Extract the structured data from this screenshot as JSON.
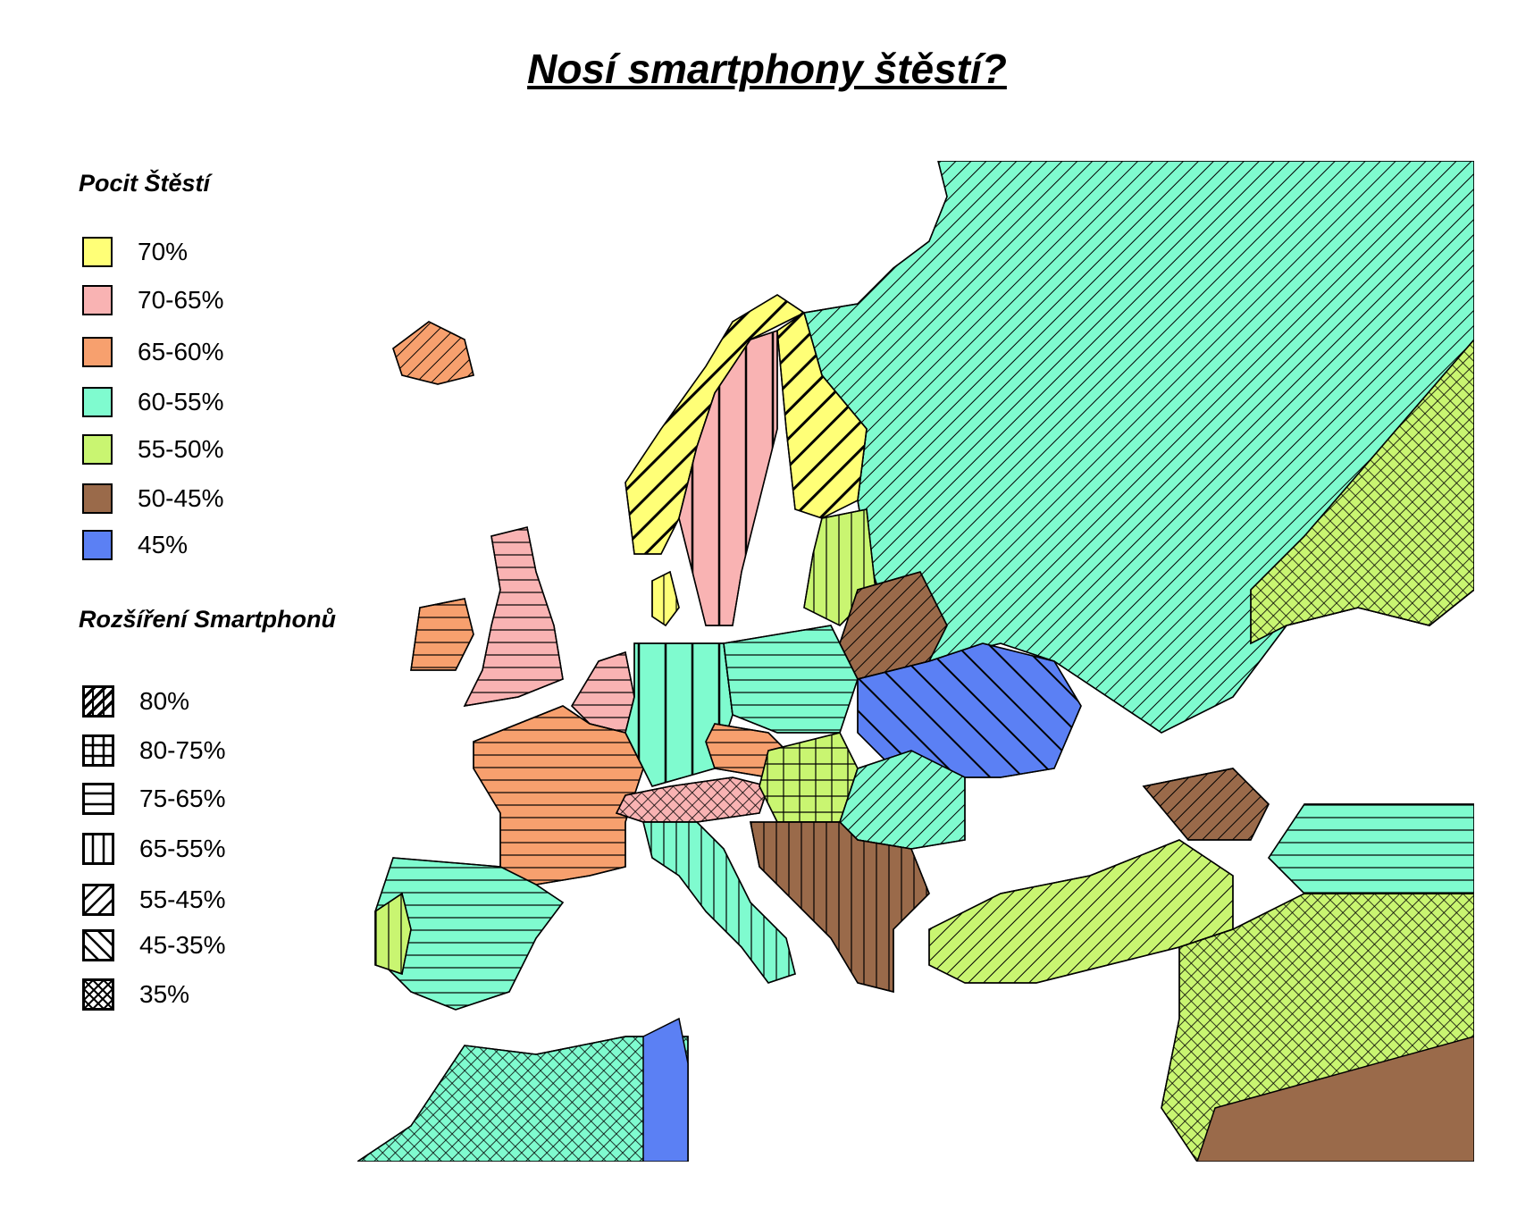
{
  "title": "Nosí smartphony štěstí?",
  "legend_happiness": {
    "heading": "Pocit Štěstí",
    "items": [
      {
        "label": "70%",
        "color": "#ffff77"
      },
      {
        "label": "70-65%",
        "color": "#f9b3b3"
      },
      {
        "label": "65-60%",
        "color": "#f7a06e"
      },
      {
        "label": "60-55%",
        "color": "#7ffbcf"
      },
      {
        "label": "55-50%",
        "color": "#c9f571"
      },
      {
        "label": "50-45%",
        "color": "#9a6a4a"
      },
      {
        "label": "45%",
        "color": "#5b80f4"
      }
    ]
  },
  "legend_smartphones": {
    "heading": "Rozšíření Smartphonů",
    "items": [
      {
        "label": "80%",
        "pattern": "bold-diagonal"
      },
      {
        "label": "80-75%",
        "pattern": "grid"
      },
      {
        "label": "75-65%",
        "pattern": "horizontal"
      },
      {
        "label": "65-55%",
        "pattern": "vertical"
      },
      {
        "label": "55-45%",
        "pattern": "diagonal"
      },
      {
        "label": "45-35%",
        "pattern": "back-diagonal"
      },
      {
        "label": "35%",
        "pattern": "crosshatch"
      }
    ]
  }
}
